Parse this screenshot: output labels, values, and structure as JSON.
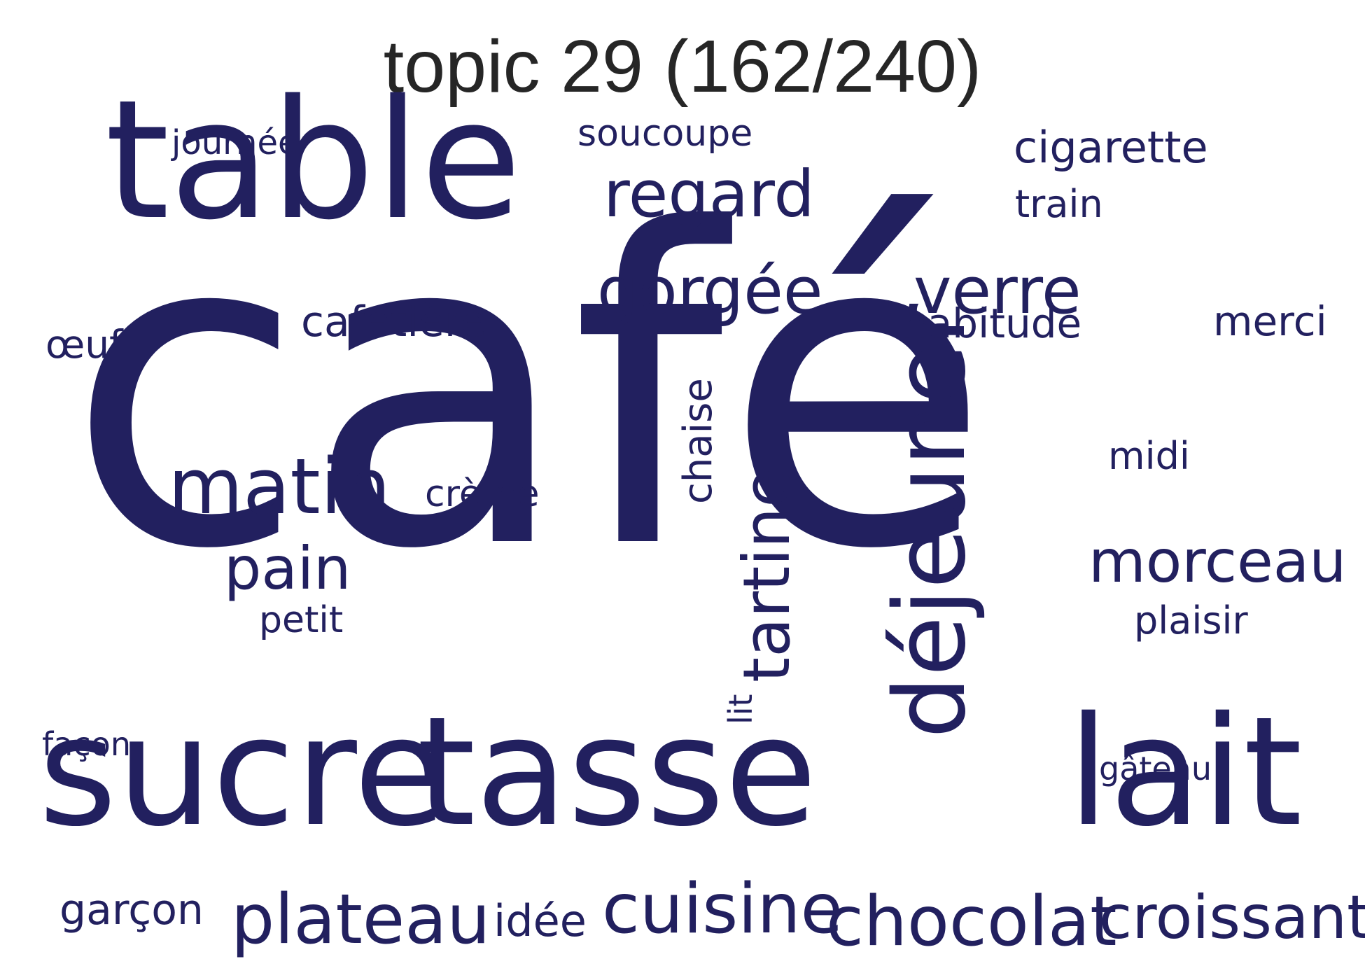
{
  "title": "topic 29 (162/240)",
  "colors": {
    "words": "#22205f",
    "title": "#262626",
    "background": "#ffffff"
  },
  "words": [
    {
      "key": "cafe",
      "text": "café",
      "weight": 1.0,
      "vertical": false
    },
    {
      "key": "sucre",
      "text": "sucre",
      "weight": 0.35,
      "vertical": false
    },
    {
      "key": "tasse",
      "text": "tasse",
      "weight": 0.35,
      "vertical": false
    },
    {
      "key": "lait",
      "text": "lait",
      "weight": 0.35,
      "vertical": false
    },
    {
      "key": "table",
      "text": "table",
      "weight": 0.4,
      "vertical": false
    },
    {
      "key": "dejeuner",
      "text": "déjeuner",
      "weight": 0.22,
      "vertical": true
    },
    {
      "key": "matin",
      "text": "matin",
      "weight": 0.15,
      "vertical": false
    },
    {
      "key": "chocolat",
      "text": "chocolat",
      "weight": 0.12,
      "vertical": false
    },
    {
      "key": "cuisine",
      "text": "cuisine",
      "weight": 0.12,
      "vertical": false
    },
    {
      "key": "plateau",
      "text": "plateau",
      "weight": 0.12,
      "vertical": false
    },
    {
      "key": "croissant",
      "text": "croissant",
      "weight": 0.11,
      "vertical": false
    },
    {
      "key": "tartine",
      "text": "tartine",
      "weight": 0.12,
      "vertical": true
    },
    {
      "key": "regard",
      "text": "regard",
      "weight": 0.11,
      "vertical": false
    },
    {
      "key": "verre",
      "text": "verre",
      "weight": 0.11,
      "vertical": false
    },
    {
      "key": "gorgee",
      "text": "gorgée",
      "weight": 0.11,
      "vertical": false
    },
    {
      "key": "morceau",
      "text": "morceau",
      "weight": 0.1,
      "vertical": false
    },
    {
      "key": "pain",
      "text": "pain",
      "weight": 0.1,
      "vertical": false
    },
    {
      "key": "cigarette",
      "text": "cigarette",
      "weight": 0.07,
      "vertical": false
    },
    {
      "key": "cafetiere",
      "text": "cafetière",
      "weight": 0.07,
      "vertical": false
    },
    {
      "key": "habitude",
      "text": "habitude",
      "weight": 0.07,
      "vertical": false
    },
    {
      "key": "merci",
      "text": "merci",
      "weight": 0.07,
      "vertical": false
    },
    {
      "key": "garcon",
      "text": "garçon",
      "weight": 0.07,
      "vertical": false
    },
    {
      "key": "idee",
      "text": "idée",
      "weight": 0.07,
      "vertical": false
    },
    {
      "key": "chaise",
      "text": "chaise",
      "weight": 0.07,
      "vertical": true
    },
    {
      "key": "plaisir",
      "text": "plaisir",
      "weight": 0.06,
      "vertical": false
    },
    {
      "key": "midi",
      "text": "midi",
      "weight": 0.06,
      "vertical": false
    },
    {
      "key": "train",
      "text": "train",
      "weight": 0.06,
      "vertical": false
    },
    {
      "key": "soucoupe",
      "text": "soucoupe",
      "weight": 0.06,
      "vertical": false
    },
    {
      "key": "creme",
      "text": "crème",
      "weight": 0.06,
      "vertical": false
    },
    {
      "key": "oeuf",
      "text": "œuf",
      "weight": 0.06,
      "vertical": false
    },
    {
      "key": "petit",
      "text": "petit",
      "weight": 0.06,
      "vertical": false
    },
    {
      "key": "journee",
      "text": "journée",
      "weight": 0.05,
      "vertical": false
    },
    {
      "key": "facon",
      "text": "façon",
      "weight": 0.05,
      "vertical": false
    },
    {
      "key": "gateau",
      "text": "gâteau",
      "weight": 0.05,
      "vertical": false
    },
    {
      "key": "lit",
      "text": "lit",
      "weight": 0.05,
      "vertical": true
    }
  ]
}
